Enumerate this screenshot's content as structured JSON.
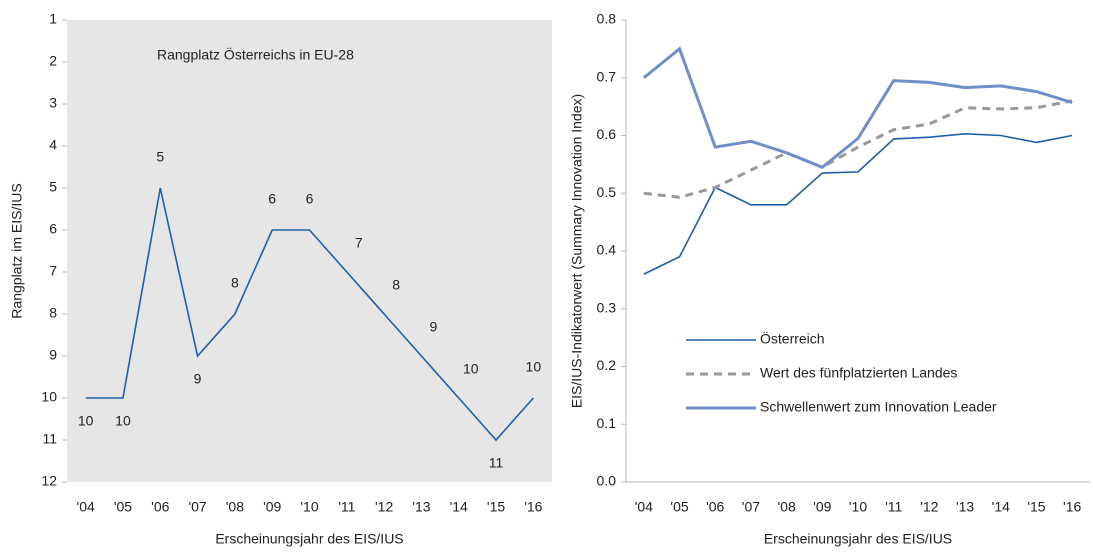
{
  "chart_data": [
    {
      "type": "line",
      "annotation": "Rangplatz Österreichs in EU-28",
      "y_label": "Rangplatz im EIS/IUS",
      "x_label": "Erscheinungsjahr des EIS/IUS",
      "categories": [
        "'04",
        "'05",
        "'06",
        "'07",
        "'08",
        "'09",
        "'10",
        "'11",
        "'12",
        "'13",
        "'14",
        "'15",
        "'16"
      ],
      "values": [
        10,
        10,
        5,
        9,
        8,
        6,
        6,
        7,
        8,
        9,
        10,
        11,
        10
      ],
      "color": "#1f5fa8",
      "ylim": [
        12,
        1
      ],
      "yticks": [
        1,
        2,
        3,
        4,
        5,
        6,
        7,
        8,
        9,
        10,
        11,
        12
      ],
      "background": "#e6e6e6"
    },
    {
      "type": "line",
      "y_label": "EIS/IUS-Indikatorwert (Summary Innovation Index)",
      "x_label": "Erscheinungsjahr des EIS/IUS",
      "categories": [
        "'04",
        "'05",
        "'06",
        "'07",
        "'08",
        "'09",
        "'10",
        "'11",
        "'12",
        "'13",
        "'14",
        "'15",
        "'16"
      ],
      "series": [
        {
          "name": "Österreich",
          "color": "#1f5fa8",
          "values": [
            0.36,
            0.39,
            0.51,
            0.48,
            0.48,
            0.535,
            0.537,
            0.594,
            0.597,
            0.603,
            0.6,
            0.588,
            0.6
          ]
        },
        {
          "name": "Wert des fünfplatzierten Landes",
          "color": "#999999",
          "dashed": true,
          "values": [
            0.5,
            0.493,
            0.51,
            0.54,
            0.57,
            0.545,
            0.58,
            0.61,
            0.62,
            0.648,
            0.646,
            0.648,
            0.66
          ]
        },
        {
          "name": "Schwellenwert zum Innovation Leader",
          "color": "#6f8fc8",
          "values": [
            0.7,
            0.75,
            0.58,
            0.59,
            0.57,
            0.545,
            0.595,
            0.695,
            0.692,
            0.683,
            0.686,
            0.676,
            0.657
          ]
        }
      ],
      "ylim": [
        0,
        0.8
      ],
      "yticks": [
        {
          "value": 0,
          "label": "0.0"
        },
        0.1,
        0.2,
        0.3,
        0.4,
        0.5,
        0.6,
        0.7,
        0.8
      ]
    }
  ]
}
